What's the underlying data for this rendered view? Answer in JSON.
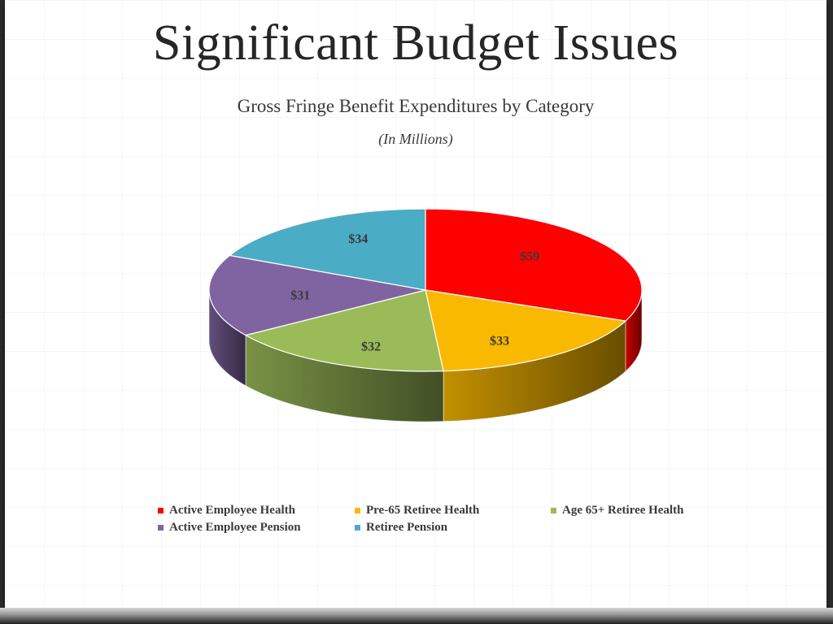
{
  "slide": {
    "title": "Significant Budget Issues"
  },
  "chart_data": {
    "type": "pie",
    "title": "Gross Fringe Benefit Expenditures by Category",
    "subtitle": "(In Millions)",
    "style": "3d",
    "legend_position": "bottom",
    "slices": [
      {
        "name": "Active Employee Health",
        "value": 59,
        "label": "$59",
        "color": "#ff0000"
      },
      {
        "name": "Pre-65 Retiree Health",
        "value": 33,
        "label": "$33",
        "color": "#f9b900"
      },
      {
        "name": "Age 65+ Retiree Health",
        "value": 32,
        "label": "$32",
        "color": "#9bbb59"
      },
      {
        "name": "Active Employee Pension",
        "value": 31,
        "label": "$31",
        "color": "#8064a2"
      },
      {
        "name": "Retiree Pension",
        "value": 34,
        "label": "$34",
        "color": "#4bacc6"
      }
    ]
  }
}
